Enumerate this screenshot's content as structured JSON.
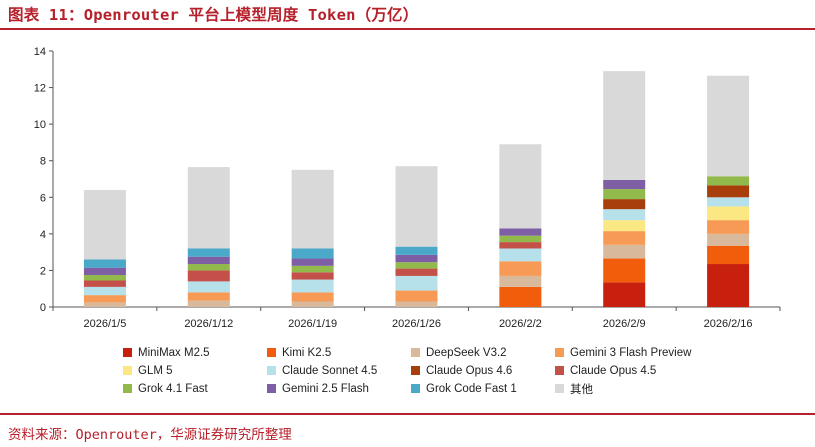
{
  "title": "图表 11：Openrouter 平台上模型周度 Token（万亿）",
  "source": "资料来源：Openrouter，华源证券研究所整理",
  "chart_data": {
    "type": "bar",
    "stacked": true,
    "title": "",
    "xlabel": "",
    "ylabel": "",
    "ylim": [
      0,
      14
    ],
    "yticks": [
      0,
      2,
      4,
      6,
      8,
      10,
      12,
      14
    ],
    "grid": false,
    "legend_position": "bottom",
    "categories": [
      "2026/1/5",
      "2026/1/12",
      "2026/1/19",
      "2026/1/26",
      "2026/2/2",
      "2026/2/9",
      "2026/2/16"
    ],
    "series": [
      {
        "name": "MiniMax M2.5",
        "color": "#c8200e",
        "values": [
          0,
          0,
          0,
          0,
          0,
          1.35,
          2.35
        ]
      },
      {
        "name": "Kimi K2.5",
        "color": "#f25d0c",
        "values": [
          0,
          0,
          0,
          0,
          1.1,
          1.3,
          1.0
        ]
      },
      {
        "name": "DeepSeek V3.2",
        "color": "#d9b99b",
        "values": [
          0.25,
          0.35,
          0.3,
          0.3,
          0.6,
          0.75,
          0.65
        ]
      },
      {
        "name": "Gemini 3 Flash Preview",
        "color": "#f79a55",
        "values": [
          0.4,
          0.45,
          0.5,
          0.6,
          0.8,
          0.75,
          0.75
        ]
      },
      {
        "name": "GLM 5",
        "color": "#fce882",
        "values": [
          0,
          0,
          0,
          0,
          0,
          0.6,
          0.75
        ]
      },
      {
        "name": "Claude Sonnet 4.5",
        "color": "#b6e0ea",
        "values": [
          0.45,
          0.6,
          0.7,
          0.8,
          0.7,
          0.6,
          0.5
        ]
      },
      {
        "name": "Claude Opus 4.6",
        "color": "#a83e0c",
        "values": [
          0,
          0,
          0,
          0,
          0,
          0.55,
          0.65
        ]
      },
      {
        "name": "Claude Opus 4.5",
        "color": "#c4504a",
        "values": [
          0.35,
          0.6,
          0.4,
          0.4,
          0.35,
          0,
          0
        ]
      },
      {
        "name": "Grok 4.1 Fast",
        "color": "#92b94c",
        "values": [
          0.3,
          0.35,
          0.35,
          0.35,
          0.35,
          0.55,
          0.5
        ]
      },
      {
        "name": "Gemini 2.5 Flash",
        "color": "#7e5fa6",
        "values": [
          0.4,
          0.4,
          0.4,
          0.4,
          0.4,
          0.5,
          0
        ]
      },
      {
        "name": "Grok Code Fast 1",
        "color": "#4aa8c8",
        "values": [
          0.45,
          0.45,
          0.55,
          0.45,
          0,
          0,
          0
        ]
      },
      {
        "name": "其他",
        "color": "#d9d9d9",
        "values": [
          3.8,
          4.45,
          4.3,
          4.4,
          4.6,
          5.95,
          5.5
        ]
      }
    ]
  }
}
